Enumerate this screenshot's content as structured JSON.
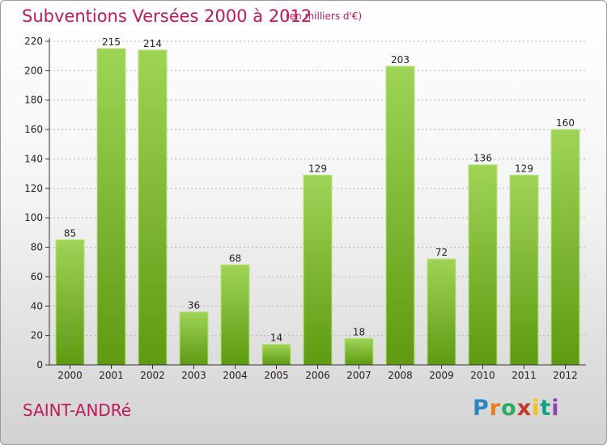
{
  "header": {
    "title": "Subventions Versées 2000 à 2012",
    "unit": "(en milliers d'€)"
  },
  "footer": {
    "commune": "SAINT-ANDRé",
    "logo_text": "Proxiti"
  },
  "colors": {
    "title": "#c2185b",
    "bar_light": "#9fd456",
    "bar_dark": "#5e9a12",
    "grid": "#b5b5b5"
  },
  "chart_data": {
    "type": "bar",
    "title": "Subventions Versées 2000 à 2012",
    "subtitle": "(en milliers d'€)",
    "xlabel": "",
    "ylabel": "",
    "categories": [
      "2000",
      "2001",
      "2002",
      "2003",
      "2004",
      "2005",
      "2006",
      "2007",
      "2008",
      "2009",
      "2010",
      "2011",
      "2012"
    ],
    "values": [
      85,
      215,
      214,
      36,
      68,
      14,
      129,
      18,
      203,
      72,
      136,
      129,
      160
    ],
    "ylim": [
      0,
      220
    ],
    "yticks": [
      0,
      20,
      40,
      60,
      80,
      100,
      120,
      140,
      160,
      180,
      200,
      220
    ],
    "grid": true,
    "data_labels": true
  }
}
